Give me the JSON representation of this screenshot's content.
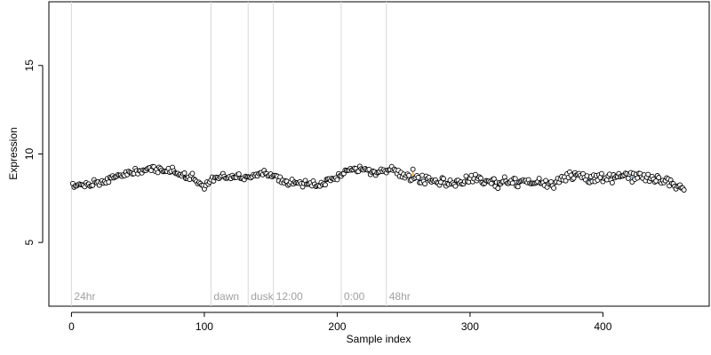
{
  "chart_data": {
    "type": "scatter",
    "title": "",
    "xlabel": "Sample index",
    "ylabel": "Expression",
    "xlim": [
      -17,
      480
    ],
    "ylim": [
      1.4,
      18.6
    ],
    "x_ticks": [
      0,
      100,
      200,
      300,
      400
    ],
    "y_ticks": [
      5,
      10,
      15
    ],
    "grid": false,
    "vertical_lines": [
      {
        "x": 0,
        "label": "24hr"
      },
      {
        "x": 105,
        "label": "dawn"
      },
      {
        "x": 133,
        "label": "dusk"
      },
      {
        "x": 152,
        "label": "12:00"
      },
      {
        "x": 203,
        "label": "0:00"
      },
      {
        "x": 237,
        "label": "48hr"
      }
    ],
    "n_points": 461,
    "baseline_knots": [
      [
        0,
        8.2
      ],
      [
        20,
        8.35
      ],
      [
        40,
        8.85
      ],
      [
        60,
        9.15
      ],
      [
        75,
        9.05
      ],
      [
        90,
        8.7
      ],
      [
        100,
        8.2
      ],
      [
        110,
        8.65
      ],
      [
        125,
        8.7
      ],
      [
        135,
        8.7
      ],
      [
        145,
        8.95
      ],
      [
        152,
        8.7
      ],
      [
        165,
        8.4
      ],
      [
        185,
        8.25
      ],
      [
        200,
        8.65
      ],
      [
        210,
        9.2
      ],
      [
        225,
        9.0
      ],
      [
        240,
        9.05
      ],
      [
        255,
        8.75
      ],
      [
        270,
        8.55
      ],
      [
        285,
        8.35
      ],
      [
        300,
        8.55
      ],
      [
        320,
        8.35
      ],
      [
        340,
        8.45
      ],
      [
        360,
        8.3
      ],
      [
        380,
        8.75
      ],
      [
        400,
        8.6
      ],
      [
        420,
        8.75
      ],
      [
        440,
        8.55
      ],
      [
        461,
        8.15
      ]
    ],
    "noise_sd": 0.28,
    "colors": {
      "point_fill": "#ffffff",
      "point_stroke": "#000000",
      "spike_up": "#f0a030",
      "spike_down": "#6fa0d8",
      "vline": "#d8d8d8"
    }
  }
}
